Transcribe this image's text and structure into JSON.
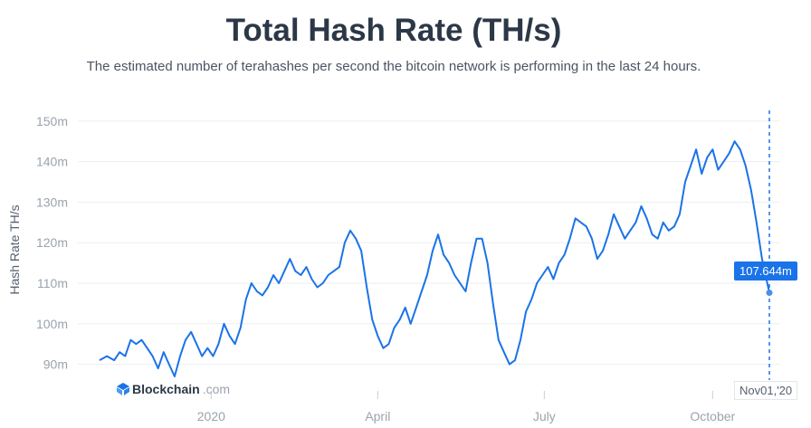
{
  "header": {
    "title": "Total Hash Rate (TH/s)",
    "subtitle": "The estimated number of terahashes per second the bitcoin network is performing in the last 24 hours."
  },
  "brand": {
    "name": "Blockchain",
    "suffix": ".com"
  },
  "tooltip": {
    "value_label": "107.644m",
    "date_label": "Nov01,'20"
  },
  "colors": {
    "line": "#1a73e8",
    "grid": "#eceef1",
    "text": "#2c3847"
  },
  "chart_data": {
    "type": "line",
    "title": "Total Hash Rate (TH/s)",
    "ylabel": "Hash Rate TH/s",
    "xlabel": "",
    "ylim": [
      86,
      152
    ],
    "y_ticks": [
      90,
      100,
      110,
      120,
      130,
      140,
      150
    ],
    "y_tick_labels": [
      "90m",
      "100m",
      "110m",
      "120m",
      "130m",
      "140m",
      "150m"
    ],
    "x_ticks": [
      {
        "date": "2020-01-01",
        "label": "2020"
      },
      {
        "date": "2020-04-01",
        "label": "April"
      },
      {
        "date": "2020-07-01",
        "label": "July"
      },
      {
        "date": "2020-10-01",
        "label": "October"
      }
    ],
    "grid": true,
    "series": [
      {
        "values": [
          [
            "2019-11-01",
            91
          ],
          [
            "2019-11-05",
            92
          ],
          [
            "2019-11-09",
            91
          ],
          [
            "2019-11-12",
            93
          ],
          [
            "2019-11-15",
            92
          ],
          [
            "2019-11-18",
            96
          ],
          [
            "2019-11-21",
            95
          ],
          [
            "2019-11-24",
            96
          ],
          [
            "2019-11-27",
            94
          ],
          [
            "2019-11-30",
            92
          ],
          [
            "2019-12-03",
            89
          ],
          [
            "2019-12-06",
            93
          ],
          [
            "2019-12-09",
            90
          ],
          [
            "2019-12-12",
            87
          ],
          [
            "2019-12-15",
            92
          ],
          [
            "2019-12-18",
            96
          ],
          [
            "2019-12-21",
            98
          ],
          [
            "2019-12-24",
            95
          ],
          [
            "2019-12-27",
            92
          ],
          [
            "2019-12-30",
            94
          ],
          [
            "2020-01-02",
            92
          ],
          [
            "2020-01-05",
            95
          ],
          [
            "2020-01-08",
            100
          ],
          [
            "2020-01-11",
            97
          ],
          [
            "2020-01-14",
            95
          ],
          [
            "2020-01-17",
            99
          ],
          [
            "2020-01-20",
            106
          ],
          [
            "2020-01-23",
            110
          ],
          [
            "2020-01-26",
            108
          ],
          [
            "2020-01-29",
            107
          ],
          [
            "2020-02-01",
            109
          ],
          [
            "2020-02-04",
            112
          ],
          [
            "2020-02-07",
            110
          ],
          [
            "2020-02-10",
            113
          ],
          [
            "2020-02-13",
            116
          ],
          [
            "2020-02-16",
            113
          ],
          [
            "2020-02-19",
            112
          ],
          [
            "2020-02-22",
            114
          ],
          [
            "2020-02-25",
            111
          ],
          [
            "2020-02-28",
            109
          ],
          [
            "2020-03-02",
            110
          ],
          [
            "2020-03-05",
            112
          ],
          [
            "2020-03-08",
            113
          ],
          [
            "2020-03-11",
            114
          ],
          [
            "2020-03-14",
            120
          ],
          [
            "2020-03-17",
            123
          ],
          [
            "2020-03-20",
            121
          ],
          [
            "2020-03-23",
            118
          ],
          [
            "2020-03-26",
            109
          ],
          [
            "2020-03-29",
            101
          ],
          [
            "2020-04-01",
            97
          ],
          [
            "2020-04-04",
            94
          ],
          [
            "2020-04-07",
            95
          ],
          [
            "2020-04-10",
            99
          ],
          [
            "2020-04-13",
            101
          ],
          [
            "2020-04-16",
            104
          ],
          [
            "2020-04-19",
            100
          ],
          [
            "2020-04-22",
            104
          ],
          [
            "2020-04-25",
            108
          ],
          [
            "2020-04-28",
            112
          ],
          [
            "2020-05-01",
            118
          ],
          [
            "2020-05-04",
            122
          ],
          [
            "2020-05-07",
            117
          ],
          [
            "2020-05-10",
            115
          ],
          [
            "2020-05-13",
            112
          ],
          [
            "2020-05-16",
            110
          ],
          [
            "2020-05-19",
            108
          ],
          [
            "2020-05-22",
            115
          ],
          [
            "2020-05-25",
            121
          ],
          [
            "2020-05-28",
            121
          ],
          [
            "2020-05-31",
            115
          ],
          [
            "2020-06-03",
            105
          ],
          [
            "2020-06-06",
            96
          ],
          [
            "2020-06-09",
            93
          ],
          [
            "2020-06-12",
            90
          ],
          [
            "2020-06-15",
            91
          ],
          [
            "2020-06-18",
            96
          ],
          [
            "2020-06-21",
            103
          ],
          [
            "2020-06-24",
            106
          ],
          [
            "2020-06-27",
            110
          ],
          [
            "2020-06-30",
            112
          ],
          [
            "2020-07-03",
            114
          ],
          [
            "2020-07-06",
            111
          ],
          [
            "2020-07-09",
            115
          ],
          [
            "2020-07-12",
            117
          ],
          [
            "2020-07-15",
            121
          ],
          [
            "2020-07-18",
            126
          ],
          [
            "2020-07-21",
            125
          ],
          [
            "2020-07-24",
            124
          ],
          [
            "2020-07-27",
            121
          ],
          [
            "2020-07-30",
            116
          ],
          [
            "2020-08-02",
            118
          ],
          [
            "2020-08-05",
            122
          ],
          [
            "2020-08-08",
            127
          ],
          [
            "2020-08-11",
            124
          ],
          [
            "2020-08-14",
            121
          ],
          [
            "2020-08-17",
            123
          ],
          [
            "2020-08-20",
            125
          ],
          [
            "2020-08-23",
            129
          ],
          [
            "2020-08-26",
            126
          ],
          [
            "2020-08-29",
            122
          ],
          [
            "2020-09-01",
            121
          ],
          [
            "2020-09-04",
            125
          ],
          [
            "2020-09-07",
            123
          ],
          [
            "2020-09-10",
            124
          ],
          [
            "2020-09-13",
            127
          ],
          [
            "2020-09-16",
            135
          ],
          [
            "2020-09-19",
            139
          ],
          [
            "2020-09-22",
            143
          ],
          [
            "2020-09-25",
            137
          ],
          [
            "2020-09-28",
            141
          ],
          [
            "2020-10-01",
            143
          ],
          [
            "2020-10-04",
            138
          ],
          [
            "2020-10-07",
            140
          ],
          [
            "2020-10-10",
            142
          ],
          [
            "2020-10-13",
            145
          ],
          [
            "2020-10-16",
            143
          ],
          [
            "2020-10-19",
            139
          ],
          [
            "2020-10-22",
            133
          ],
          [
            "2020-10-25",
            125
          ],
          [
            "2020-10-28",
            116
          ],
          [
            "2020-11-01",
            107.644
          ]
        ]
      }
    ]
  }
}
